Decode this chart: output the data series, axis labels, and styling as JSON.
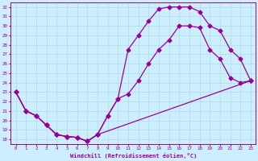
{
  "xlabel": "Windchill (Refroidissement éolien,°C)",
  "xlim": [
    -0.5,
    23.5
  ],
  "ylim": [
    17.5,
    32.5
  ],
  "xticks": [
    0,
    1,
    2,
    3,
    4,
    5,
    6,
    7,
    8,
    9,
    10,
    11,
    12,
    13,
    14,
    15,
    16,
    17,
    18,
    19,
    20,
    21,
    22,
    23
  ],
  "yticks": [
    18,
    19,
    20,
    21,
    22,
    23,
    24,
    25,
    26,
    27,
    28,
    29,
    30,
    31,
    32
  ],
  "bg_color": "#cceeff",
  "line_color": "#990099",
  "line_width": 0.9,
  "marker": "D",
  "marker_size": 2.5,
  "line1_x": [
    0,
    1,
    2,
    3,
    4,
    5,
    6,
    7,
    8,
    9,
    10,
    11,
    12,
    13,
    14,
    15,
    16,
    17,
    18,
    19,
    20,
    21,
    22,
    23
  ],
  "line1_y": [
    23,
    21,
    20.5,
    19.5,
    18.5,
    18.3,
    18.2,
    17.8,
    18.5,
    20.5,
    22.3,
    22.8,
    24.2,
    26.0,
    27.5,
    28.5,
    30.0,
    30.0,
    29.8,
    27.5,
    26.5,
    24.5,
    24.0,
    24.2
  ],
  "line2_x": [
    0,
    1,
    2,
    3,
    4,
    5,
    6,
    7,
    8,
    9,
    10,
    11,
    12,
    13,
    14,
    15,
    16,
    17,
    18,
    19,
    20,
    21,
    22,
    23
  ],
  "line2_y": [
    23,
    21,
    20.5,
    19.5,
    18.5,
    18.3,
    18.2,
    17.8,
    18.5,
    20.5,
    22.3,
    27.5,
    29.0,
    30.5,
    31.8,
    32.0,
    32.0,
    32.0,
    31.5,
    30.0,
    29.5,
    27.5,
    26.5,
    24.2
  ],
  "line3_x": [
    0,
    1,
    2,
    3,
    4,
    5,
    6,
    7,
    8,
    23
  ],
  "line3_y": [
    23,
    21,
    20.5,
    19.5,
    18.5,
    18.3,
    18.2,
    17.8,
    18.5,
    24.2
  ]
}
